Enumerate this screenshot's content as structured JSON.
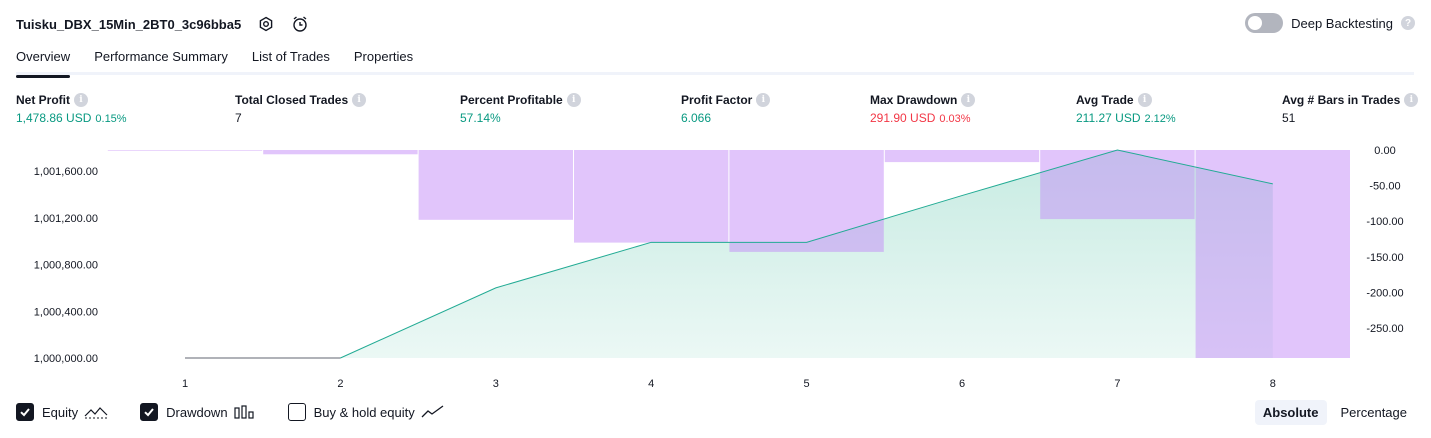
{
  "header": {
    "title": "Tuisku_DBX_15Min_2BT0_3c96bba5",
    "deep_backtesting_label": "Deep Backtesting",
    "deep_backtesting_enabled": false
  },
  "tabs": [
    {
      "label": "Overview",
      "active": true
    },
    {
      "label": "Performance Summary",
      "active": false
    },
    {
      "label": "List of Trades",
      "active": false
    },
    {
      "label": "Properties",
      "active": false
    }
  ],
  "metrics": [
    {
      "label": "Net Profit",
      "value": "1,478.86 USD",
      "pct": "0.15%",
      "tone": "green"
    },
    {
      "label": "Total Closed Trades",
      "value": "7",
      "pct": "",
      "tone": "dark"
    },
    {
      "label": "Percent Profitable",
      "value": "57.14%",
      "pct": "",
      "tone": "green"
    },
    {
      "label": "Profit Factor",
      "value": "6.066",
      "pct": "",
      "tone": "green"
    },
    {
      "label": "Max Drawdown",
      "value": "291.90 USD",
      "pct": "0.03%",
      "tone": "red"
    },
    {
      "label": "Avg Trade",
      "value": "211.27 USD",
      "pct": "2.12%",
      "tone": "green"
    },
    {
      "label": "Avg # Bars in Trades",
      "value": "51",
      "pct": "",
      "tone": "dark"
    }
  ],
  "chart_data": {
    "type": "area",
    "x": [
      1,
      2,
      3,
      4,
      5,
      6,
      7,
      8
    ],
    "series": [
      {
        "name": "Equity",
        "kind": "area",
        "axis": "left",
        "values": [
          1000000,
          1000000,
          1000600,
          1000990,
          1000990,
          1001390,
          1001780,
          1001490
        ]
      },
      {
        "name": "Drawdown",
        "kind": "bar",
        "axis": "right",
        "values": [
          -1,
          -6,
          -98,
          -130,
          -143,
          -17,
          -97,
          -292
        ]
      }
    ],
    "left_axis_ticks": [
      "1,001,600.00",
      "1,001,200.00",
      "1,000,800.00",
      "1,000,400.00",
      "1,000,000.00"
    ],
    "right_axis_ticks": [
      "0.00",
      "-50.00",
      "-100.00",
      "-150.00",
      "-200.00",
      "-250.00"
    ],
    "x_tick_labels": [
      "1",
      "2",
      "3",
      "4",
      "5",
      "6",
      "7",
      "8"
    ],
    "left_ylim": [
      1000000,
      1001780
    ],
    "right_ylim": [
      -292,
      0
    ],
    "colors": {
      "equity_line": "#22ab94",
      "equity_fill": "#c7ebe2",
      "drawdown_bar": "#e1c4fc",
      "overlap": "#b3b7e6",
      "flat_equity": "#9598a1"
    }
  },
  "legend": {
    "items": [
      {
        "label": "Equity",
        "checked": true,
        "icon": "equity-line-icon"
      },
      {
        "label": "Drawdown",
        "checked": true,
        "icon": "drawdown-bars-icon"
      },
      {
        "label": "Buy & hold equity",
        "checked": false,
        "icon": "buy-hold-line-icon"
      }
    ]
  },
  "mode": {
    "absolute_label": "Absolute",
    "percentage_label": "Percentage",
    "selected": "Absolute"
  }
}
